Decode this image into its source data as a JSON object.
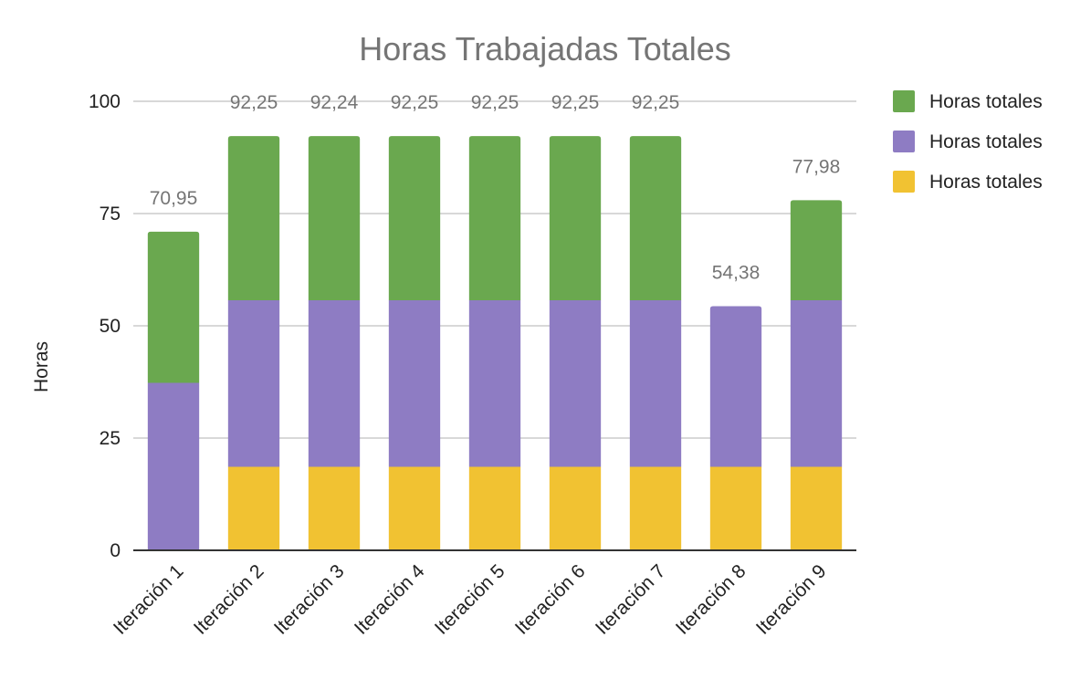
{
  "chart_data": {
    "type": "bar",
    "stacked": true,
    "title": "Horas Trabajadas Totales",
    "xlabel": "",
    "ylabel": "Horas",
    "ylim": [
      0,
      100
    ],
    "yticks": [
      0,
      25,
      50,
      75,
      100
    ],
    "grid": true,
    "legend_position": "right",
    "categories": [
      "Iteración 1",
      "Iteración 2",
      "Iteración 3",
      "Iteración 4",
      "Iteración 5",
      "Iteración 6",
      "Iteración 7",
      "Iteración 8",
      "Iteración 9"
    ],
    "series": [
      {
        "name": "Horas totales",
        "color": "#f1c232",
        "values": [
          0,
          18.6,
          18.6,
          18.6,
          18.6,
          18.6,
          18.6,
          18.6,
          18.6
        ]
      },
      {
        "name": "Horas totales",
        "color": "#8e7cc3",
        "values": [
          37.3,
          37.1,
          37.1,
          37.1,
          37.1,
          37.1,
          37.1,
          35.78,
          37.1
        ]
      },
      {
        "name": "Horas totales",
        "color": "#6aa84f",
        "values": [
          33.65,
          36.55,
          36.54,
          36.55,
          36.55,
          36.55,
          36.55,
          0,
          22.28
        ]
      }
    ],
    "totals": [
      70.95,
      92.25,
      92.24,
      92.25,
      92.25,
      92.25,
      92.25,
      54.38,
      77.98
    ],
    "total_labels": [
      "70,95",
      "92,25",
      "92,24",
      "92,25",
      "92,25",
      "92,25",
      "92,25",
      "54,38",
      "77,98"
    ]
  }
}
